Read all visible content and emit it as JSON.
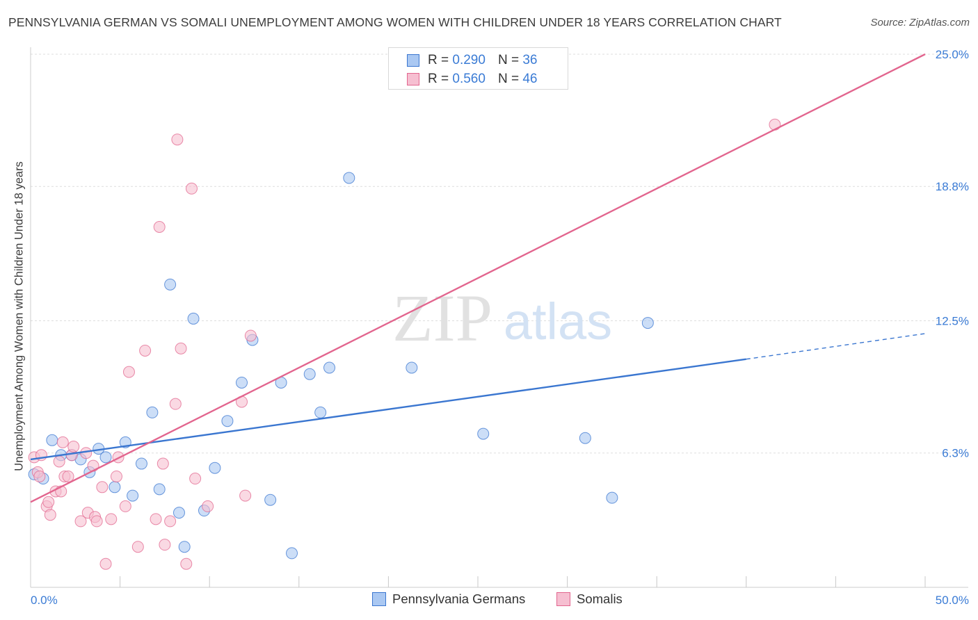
{
  "title": "PENNSYLVANIA GERMAN VS SOMALI UNEMPLOYMENT AMONG WOMEN WITH CHILDREN UNDER 18 YEARS CORRELATION CHART",
  "source": "Source: ZipAtlas.com",
  "watermark": {
    "zip": "ZIP",
    "atlas": "atlas"
  },
  "legend": {
    "rows": [
      {
        "r_label": "R = ",
        "r_value": "0.290",
        "n_label": "N = ",
        "n_value": "36"
      },
      {
        "r_label": "R = ",
        "r_value": "0.560",
        "n_label": "N = ",
        "n_value": "46"
      }
    ]
  },
  "chart_data": {
    "type": "scatter",
    "title": "PENNSYLVANIA GERMAN VS SOMALI UNEMPLOYMENT AMONG WOMEN WITH CHILDREN UNDER 18 YEARS CORRELATION CHART",
    "xlabel": "",
    "ylabel": "Unemployment Among Women with Children Under 18 years",
    "xlim": [
      0,
      50
    ],
    "ylim": [
      0,
      25
    ],
    "x_tick_labels": [
      {
        "value": 0,
        "label": "0.0%"
      },
      {
        "value": 50,
        "label": "50.0%"
      }
    ],
    "y_tick_labels": [
      {
        "value": 6.3,
        "label": "6.3%"
      },
      {
        "value": 12.5,
        "label": "12.5%"
      },
      {
        "value": 18.8,
        "label": "18.8%"
      },
      {
        "value": 25.0,
        "label": "25.0%"
      }
    ],
    "x_minor_ticks": [
      5,
      10,
      15,
      20,
      25,
      30,
      35,
      40,
      45,
      50
    ],
    "grid": true,
    "legend_position": "top-center",
    "series": [
      {
        "name": "Pennsylvania Germans",
        "color": "#3a76d0",
        "fill": "#aac8f2",
        "points": [
          [
            0.2,
            5.3
          ],
          [
            0.7,
            5.1
          ],
          [
            1.2,
            6.9
          ],
          [
            1.7,
            6.2
          ],
          [
            2.3,
            6.2
          ],
          [
            2.8,
            6.0
          ],
          [
            3.3,
            5.4
          ],
          [
            3.8,
            6.5
          ],
          [
            4.2,
            6.1
          ],
          [
            4.7,
            4.7
          ],
          [
            5.3,
            6.8
          ],
          [
            5.7,
            4.3
          ],
          [
            6.2,
            5.8
          ],
          [
            6.8,
            8.2
          ],
          [
            7.2,
            4.6
          ],
          [
            7.8,
            14.2
          ],
          [
            8.3,
            3.5
          ],
          [
            8.6,
            1.9
          ],
          [
            9.1,
            12.6
          ],
          [
            9.7,
            3.6
          ],
          [
            10.3,
            5.6
          ],
          [
            11.0,
            7.8
          ],
          [
            11.8,
            9.6
          ],
          [
            12.4,
            11.6
          ],
          [
            13.4,
            4.1
          ],
          [
            14.0,
            9.6
          ],
          [
            14.6,
            1.6
          ],
          [
            15.6,
            10.0
          ],
          [
            16.2,
            8.2
          ],
          [
            16.7,
            10.3
          ],
          [
            17.8,
            19.2
          ],
          [
            21.3,
            10.3
          ],
          [
            25.3,
            7.2
          ],
          [
            31.0,
            7.0
          ],
          [
            32.5,
            4.2
          ],
          [
            34.5,
            12.4
          ]
        ],
        "trend": {
          "x": [
            0,
            40,
            50
          ],
          "y": [
            6.0,
            10.7,
            11.9
          ],
          "dashed_from_x": 40
        }
      },
      {
        "name": "Somalis",
        "color": "#e2658e",
        "fill": "#f6bfd1",
        "points": [
          [
            0.2,
            6.1
          ],
          [
            0.4,
            5.4
          ],
          [
            0.6,
            6.2
          ],
          [
            0.9,
            3.8
          ],
          [
            1.0,
            4.0
          ],
          [
            1.1,
            3.4
          ],
          [
            1.4,
            4.5
          ],
          [
            1.6,
            5.9
          ],
          [
            1.7,
            4.5
          ],
          [
            1.8,
            6.8
          ],
          [
            1.9,
            5.2
          ],
          [
            2.1,
            5.2
          ],
          [
            2.3,
            6.2
          ],
          [
            2.4,
            6.6
          ],
          [
            2.8,
            3.1
          ],
          [
            3.1,
            6.3
          ],
          [
            3.2,
            3.5
          ],
          [
            3.5,
            5.7
          ],
          [
            3.6,
            3.3
          ],
          [
            3.7,
            3.1
          ],
          [
            4.0,
            4.7
          ],
          [
            4.2,
            1.1
          ],
          [
            4.5,
            3.2
          ],
          [
            4.8,
            5.2
          ],
          [
            4.9,
            6.1
          ],
          [
            5.3,
            3.8
          ],
          [
            5.5,
            10.1
          ],
          [
            6.0,
            1.9
          ],
          [
            6.4,
            11.1
          ],
          [
            7.0,
            3.2
          ],
          [
            7.2,
            16.9
          ],
          [
            7.4,
            5.8
          ],
          [
            7.5,
            2.0
          ],
          [
            7.8,
            3.1
          ],
          [
            8.1,
            8.6
          ],
          [
            8.2,
            21.0
          ],
          [
            8.4,
            11.2
          ],
          [
            8.7,
            1.1
          ],
          [
            9.0,
            18.7
          ],
          [
            9.2,
            5.1
          ],
          [
            9.9,
            3.8
          ],
          [
            11.8,
            8.7
          ],
          [
            12.0,
            4.3
          ],
          [
            12.3,
            11.8
          ],
          [
            41.6,
            21.7
          ],
          [
            0.5,
            5.2
          ]
        ],
        "trend": {
          "x": [
            0,
            50
          ],
          "y": [
            4.0,
            25.0
          ]
        }
      }
    ]
  }
}
